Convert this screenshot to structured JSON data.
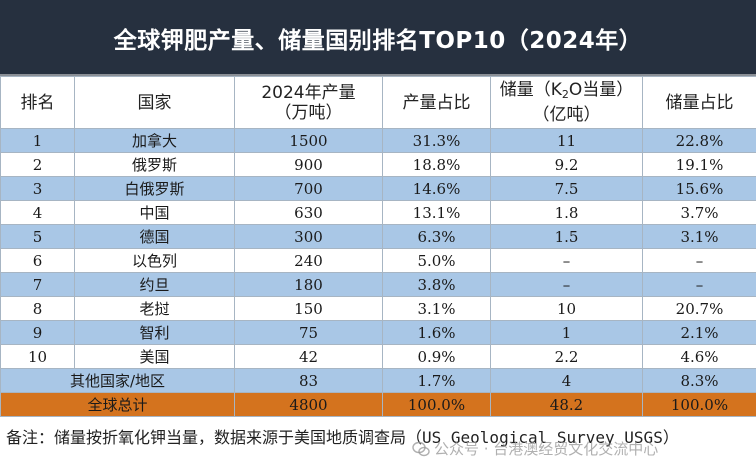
{
  "title": "全球钾肥产量、储量国别排名TOP10（2024年）",
  "header": {
    "rank": "排名",
    "country": "国家",
    "production_line1": "2024年产量",
    "production_line2": "（万吨）",
    "production_share": "产量占比",
    "reserves_pre": "储量（K",
    "reserves_sub": "2",
    "reserves_post": "O当量）",
    "reserves_line2": "（亿吨）",
    "reserves_share": "储量占比"
  },
  "rows": [
    {
      "rank": "1",
      "country": "加拿大",
      "production": "1500",
      "production_share": "31.3%",
      "reserves": "11",
      "reserves_share": "22.8%"
    },
    {
      "rank": "2",
      "country": "俄罗斯",
      "production": "900",
      "production_share": "18.8%",
      "reserves": "9.2",
      "reserves_share": "19.1%"
    },
    {
      "rank": "3",
      "country": "白俄罗斯",
      "production": "700",
      "production_share": "14.6%",
      "reserves": "7.5",
      "reserves_share": "15.6%"
    },
    {
      "rank": "4",
      "country": "中国",
      "production": "630",
      "production_share": "13.1%",
      "reserves": "1.8",
      "reserves_share": "3.7%"
    },
    {
      "rank": "5",
      "country": "德国",
      "production": "300",
      "production_share": "6.3%",
      "reserves": "1.5",
      "reserves_share": "3.1%"
    },
    {
      "rank": "6",
      "country": "以色列",
      "production": "240",
      "production_share": "5.0%",
      "reserves": "–",
      "reserves_share": "–"
    },
    {
      "rank": "7",
      "country": "约旦",
      "production": "180",
      "production_share": "3.8%",
      "reserves": "–",
      "reserves_share": "–"
    },
    {
      "rank": "8",
      "country": "老挝",
      "production": "150",
      "production_share": "3.1%",
      "reserves": "10",
      "reserves_share": "20.7%"
    },
    {
      "rank": "9",
      "country": "智利",
      "production": "75",
      "production_share": "1.6%",
      "reserves": "1",
      "reserves_share": "2.1%"
    },
    {
      "rank": "10",
      "country": "美国",
      "production": "42",
      "production_share": "0.9%",
      "reserves": "2.2",
      "reserves_share": "4.6%"
    }
  ],
  "others": {
    "label": "其他国家/地区",
    "production": "83",
    "production_share": "1.7%",
    "reserves": "4",
    "reserves_share": "8.3%"
  },
  "total": {
    "label": "全球总计",
    "production": "4800",
    "production_share": "100.0%",
    "reserves": "48.2",
    "reserves_share": "100.0%"
  },
  "note": "备注：储量按折氧化钾当量，数据来源于美国地质调查局（US Geological Survey USGS）",
  "watermark": "公众号 · 台港澳经贸文化交流中心",
  "colors": {
    "title_bg": "#26303f",
    "row_blue": "#a9c7e6",
    "total_bg": "#d4731e"
  }
}
